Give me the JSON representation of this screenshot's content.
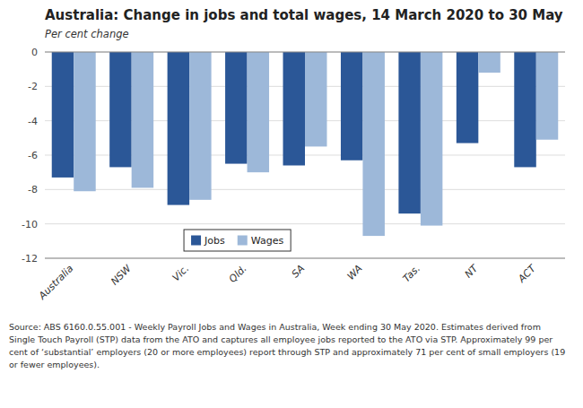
{
  "chart_data": {
    "type": "bar",
    "title": "Australia:  Change in jobs and total wages, 14 March 2020 to 30 May",
    "subtitle": "Per cent change",
    "categories": [
      "Australia",
      "NSW",
      "Vic.",
      "Qld.",
      "SA",
      "WA",
      "Tas.",
      "NT",
      "ACT"
    ],
    "series": [
      {
        "name": "Jobs",
        "color": "#2B5797",
        "values": [
          -7.3,
          -6.7,
          -8.9,
          -6.5,
          -6.6,
          -6.3,
          -9.4,
          -5.3,
          -6.7
        ]
      },
      {
        "name": "Wages",
        "color": "#9DB8D9",
        "values": [
          -8.1,
          -7.9,
          -8.6,
          -7.0,
          -5.5,
          -10.7,
          -10.1,
          -1.2,
          -5.1
        ]
      }
    ],
    "ylim": [
      -12,
      0
    ],
    "yticks": [
      0,
      -2,
      -4,
      -6,
      -8,
      -10,
      -12
    ],
    "grid": true,
    "legend": "lower center",
    "source": "Source: ABS  6160.0.55.001 - Weekly Payroll Jobs and Wages in Australia, Week ending 30 May 2020.  Estimates derived from\nSingle Touch Payroll (STP) data from the ATO and captures all employee jobs reported to the ATO via STP.  Approximately 99 per\ncent of ‘substantial’ employers (20 or more employees) report through STP and approximately 71 per cent of small employers (19\nor fewer employees)."
  }
}
